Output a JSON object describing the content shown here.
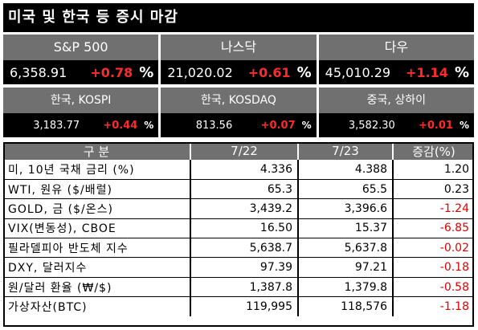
{
  "title": "미국 및 한국 등 증시 마감",
  "us_indices": [
    {
      "name": "S&P 500",
      "value": "6,358.91",
      "change": "+0.78",
      "unit": "%"
    },
    {
      "name": "나스닥",
      "value": "21,020.02",
      "change": "+0.61",
      "unit": "%"
    },
    {
      "name": "다우",
      "value": "45,010.29",
      "change": "+1.14",
      "unit": "%"
    }
  ],
  "asia_indices": [
    {
      "name": "한국, KOSPI",
      "value": "3,183.77",
      "change": "+0.44",
      "unit": "%"
    },
    {
      "name": "한국, KOSDAQ",
      "value": "813.56",
      "change": "+0.07",
      "unit": "%"
    },
    {
      "name": "중국, 상하이",
      "value": "3,582.30",
      "change": "+0.01",
      "unit": "%"
    }
  ],
  "table": {
    "headers": [
      "구 분",
      "7/22",
      "7/23",
      "증감(%)"
    ],
    "rows": [
      {
        "label": "미, 10년 국채 금리 (%)",
        "d1": "4.336",
        "d2": "4.388",
        "chg": "1.20"
      },
      {
        "label": "WTI, 원유 ($/배럴)",
        "d1": "65.3",
        "d2": "65.5",
        "chg": "0.23"
      },
      {
        "label": "GOLD, 금 ($/온스)",
        "d1": "3,439.2",
        "d2": "3,396.6",
        "chg": "-1.24"
      },
      {
        "label": "VIX(변동성), CBOE",
        "d1": "16.50",
        "d2": "15.37",
        "chg": "-6.85"
      },
      {
        "label": "필라델피아 반도체 지수",
        "d1": "5,638.7",
        "d2": "5,637.8",
        "chg": "-0.02"
      },
      {
        "label": "DXY, 달러지수",
        "d1": "97.39",
        "d2": "97.21",
        "chg": "-0.18"
      },
      {
        "label": "원/달러 환율 (₩/$)",
        "d1": "1,387.8",
        "d2": "1,379.8",
        "chg": "-0.58"
      },
      {
        "label": "가상자산(BTC)",
        "d1": "119,995",
        "d2": "118,576",
        "chg": "-1.18"
      }
    ]
  },
  "colors": {
    "positive": "#ff2a2a",
    "negative": "#e00000",
    "header_bg": "#707070",
    "dark_bg": "#000000"
  }
}
